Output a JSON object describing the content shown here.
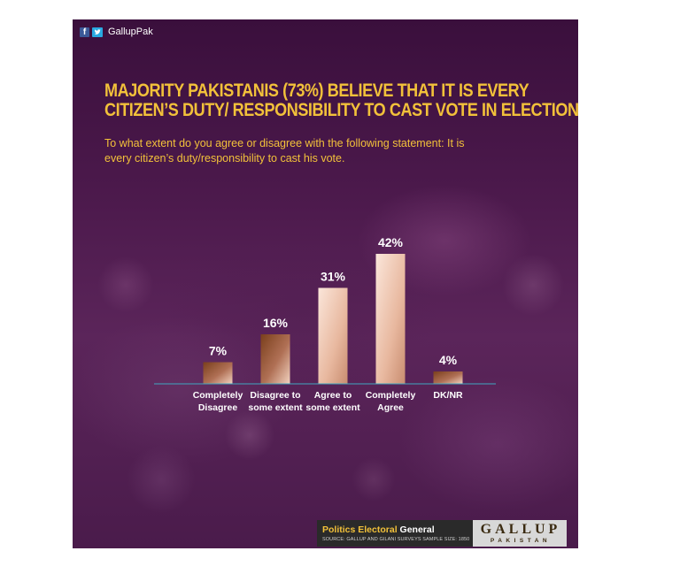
{
  "header": {
    "social_handle": "GallupPak",
    "social_icons": [
      "facebook-icon",
      "twitter-icon"
    ]
  },
  "title_line1": "MAJORITY PAKISTANIS (73%) BELIEVE THAT IT IS EVERY",
  "title_line2": "CITIZEN’S DUTY/ RESPONSIBILITY TO CAST VOTE IN ELECTIONS.",
  "subtitle_line1": "To what extent do you agree or disagree with the following statement: It is",
  "subtitle_line2": "every citizen’s duty/responsibility to cast his vote.",
  "colors": {
    "title": "#f2c13a",
    "bar_dark": "#7a3f1c",
    "bar_light": "#f2d2bf",
    "axis": "#3fa7c0"
  },
  "chart_data": {
    "type": "bar",
    "categories": [
      [
        "Completely",
        "Disagree"
      ],
      [
        "Disagree to",
        "some extent"
      ],
      [
        "Agree to",
        "some extent"
      ],
      [
        "Completely",
        "Agree"
      ],
      [
        "DK/NR"
      ]
    ],
    "values": [
      7,
      16,
      31,
      42,
      4
    ],
    "value_labels": [
      "7%",
      "16%",
      "31%",
      "42%",
      "4%"
    ],
    "unit": "%",
    "ylim": [
      0,
      45
    ],
    "grid": false
  },
  "footer": {
    "category_a": "Politics Electoral",
    "category_b": "General",
    "source": "SOURCE: GALLUP AND GILANI SURVEYS   SAMPLE SIZE: 1850",
    "logo_main": "GALLUP",
    "logo_sub": "PAKISTAN"
  }
}
